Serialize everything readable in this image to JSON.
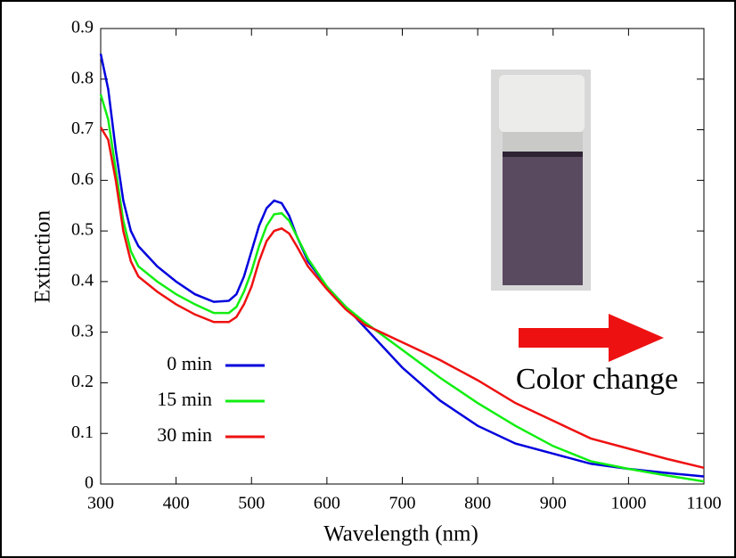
{
  "chart_data": {
    "type": "line",
    "xlabel": "Wavelength (nm)",
    "ylabel": "Extinction",
    "annotation": "Color change",
    "x": [
      300,
      310,
      320,
      330,
      340,
      350,
      375,
      400,
      425,
      450,
      470,
      480,
      490,
      500,
      510,
      520,
      530,
      540,
      550,
      560,
      575,
      600,
      625,
      650,
      700,
      750,
      800,
      850,
      900,
      950,
      1000,
      1050,
      1100
    ],
    "series": [
      {
        "name": "0 min",
        "color": "#0000dd",
        "values": [
          0.85,
          0.78,
          0.66,
          0.56,
          0.5,
          0.47,
          0.43,
          0.4,
          0.375,
          0.36,
          0.362,
          0.375,
          0.41,
          0.46,
          0.51,
          0.545,
          0.56,
          0.555,
          0.53,
          0.49,
          0.44,
          0.39,
          0.35,
          0.31,
          0.23,
          0.165,
          0.115,
          0.08,
          0.06,
          0.04,
          0.03,
          0.022,
          0.015
        ]
      },
      {
        "name": "15 min",
        "color": "#11ee11",
        "values": [
          0.77,
          0.72,
          0.62,
          0.52,
          0.46,
          0.43,
          0.4,
          0.375,
          0.355,
          0.338,
          0.338,
          0.35,
          0.38,
          0.42,
          0.47,
          0.51,
          0.533,
          0.535,
          0.52,
          0.49,
          0.445,
          0.39,
          0.35,
          0.32,
          0.265,
          0.21,
          0.16,
          0.115,
          0.075,
          0.045,
          0.03,
          0.017,
          0.005
        ]
      },
      {
        "name": "30 min",
        "color": "#ee1111",
        "values": [
          0.705,
          0.68,
          0.6,
          0.5,
          0.44,
          0.41,
          0.38,
          0.355,
          0.335,
          0.32,
          0.32,
          0.33,
          0.355,
          0.39,
          0.44,
          0.48,
          0.5,
          0.505,
          0.495,
          0.47,
          0.43,
          0.385,
          0.345,
          0.315,
          0.28,
          0.245,
          0.205,
          0.16,
          0.125,
          0.09,
          0.07,
          0.05,
          0.032
        ]
      }
    ],
    "xlim": [
      300,
      1100
    ],
    "xticks": [
      300,
      400,
      500,
      600,
      700,
      800,
      900,
      1000,
      1100
    ],
    "ylim": [
      0,
      0.9
    ],
    "yticks": [
      0,
      0.1,
      0.2,
      0.3,
      0.4,
      0.5,
      0.6,
      0.7,
      0.8,
      0.9
    ],
    "grid": false,
    "legend": "lower left"
  }
}
